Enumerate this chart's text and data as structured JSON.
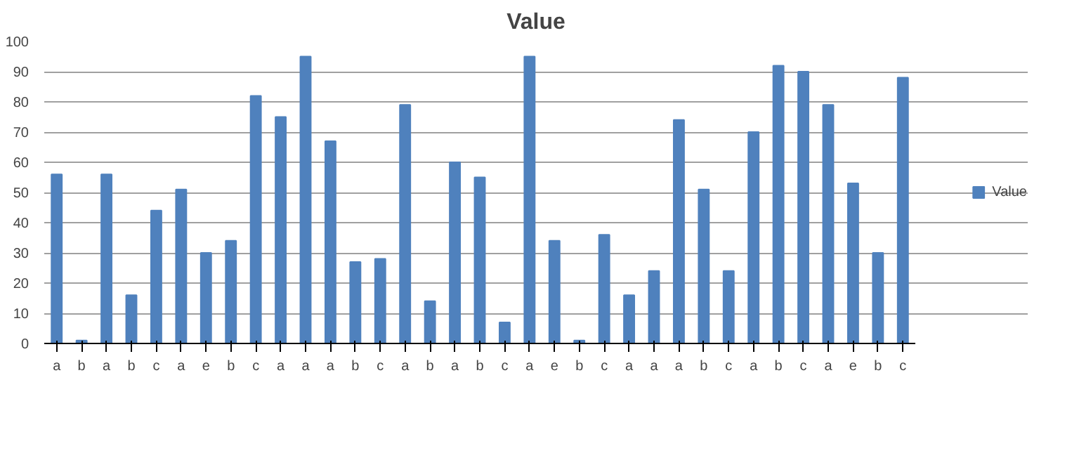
{
  "chart_data": {
    "type": "bar",
    "title": "Value",
    "categories": [
      "a",
      "b",
      "a",
      "b",
      "c",
      "a",
      "e",
      "b",
      "c",
      "a",
      "a",
      "a",
      "b",
      "c",
      "a",
      "b",
      "a",
      "b",
      "c",
      "a",
      "e",
      "b",
      "c",
      "a",
      "a",
      "a",
      "b",
      "c",
      "a",
      "b",
      "c",
      "a",
      "e",
      "b",
      "c"
    ],
    "series": [
      {
        "name": "Value",
        "color": "#4f81bd",
        "values": [
          56,
          1,
          56,
          16,
          44,
          51,
          30,
          34,
          82,
          75,
          95,
          67,
          27,
          28,
          79,
          14,
          60,
          55,
          7,
          95,
          34,
          1,
          36,
          16,
          24,
          74,
          51,
          24,
          70,
          92,
          90,
          79,
          53,
          30,
          88
        ]
      }
    ],
    "ylim": [
      0,
      100
    ],
    "yticks": [
      0,
      10,
      20,
      30,
      40,
      50,
      60,
      70,
      80,
      90,
      100
    ],
    "grid": "y",
    "legend": "right"
  }
}
